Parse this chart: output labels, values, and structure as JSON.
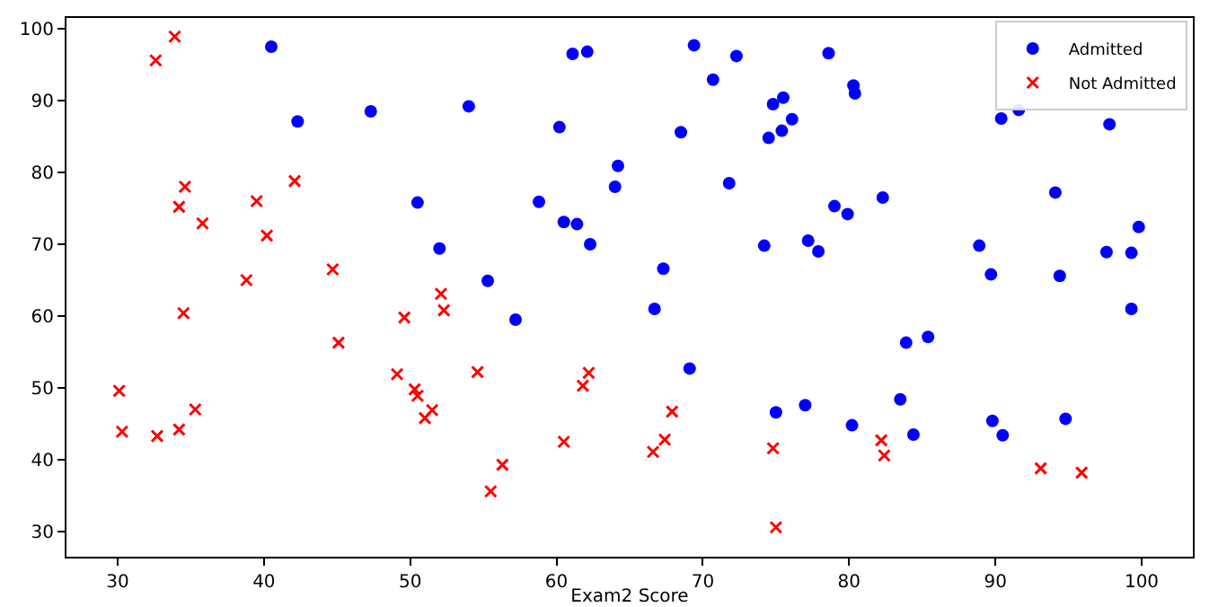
{
  "chart_data": {
    "type": "scatter",
    "xlabel": "Exam2 Score",
    "xlim": [
      26.5,
      103.5
    ],
    "xticks": [
      30,
      40,
      50,
      60,
      70,
      80,
      90,
      100
    ],
    "ylim": [
      26.5,
      101.5
    ],
    "yticks": [
      30,
      40,
      50,
      60,
      70,
      80,
      90,
      100
    ],
    "grid": false,
    "legend": "top right",
    "series": [
      {
        "name": "Admitted",
        "color": "#0000ff",
        "marker": "circle",
        "x": [
          60.2,
          79.0,
          61.1,
          75.0,
          76.1,
          84.4,
          82.3,
          69.4,
          54.0,
          69.1,
          70.7,
          77.0,
          89.7,
          77.9,
          62.3,
          80.2,
          61.4,
          85.4,
          52.0,
          64.2,
          83.9,
          94.4,
          77.2,
          97.8,
          62.1,
          91.6,
          79.9,
          99.3,
          90.5,
          97.6,
          74.2,
          71.8,
          75.4,
          40.5,
          80.3,
          66.7,
          64.0,
          72.3,
          60.5,
          58.8,
          99.8,
          47.3,
          50.5,
          88.9,
          94.8,
          67.3,
          57.2,
          80.4,
          68.5,
          75.5,
          78.6,
          94.1,
          90.4,
          74.5,
          89.8,
          83.5,
          42.3,
          99.3,
          55.3,
          74.8
        ],
        "values": [
          86.3,
          75.3,
          96.5,
          46.6,
          87.4,
          43.5,
          76.5,
          97.7,
          89.2,
          52.7,
          92.9,
          47.6,
          65.8,
          69.0,
          70.0,
          44.8,
          72.8,
          57.1,
          69.4,
          80.9,
          56.3,
          65.6,
          70.5,
          86.7,
          96.8,
          88.7,
          74.2,
          61.0,
          43.4,
          68.9,
          69.8,
          78.5,
          85.8,
          97.5,
          92.1,
          61.0,
          78.0,
          96.2,
          73.1,
          75.9,
          72.4,
          88.5,
          75.8,
          69.8,
          45.7,
          66.6,
          59.5,
          91.0,
          85.6,
          90.4,
          96.6,
          77.2,
          87.5,
          84.8,
          45.4,
          48.4,
          87.1,
          68.8,
          64.9,
          89.5
        ]
      },
      {
        "name": "Not Admitted",
        "color": "#ff0000",
        "marker": "cross",
        "x": [
          34.6,
          30.3,
          35.8,
          45.1,
          95.9,
          75.0,
          39.5,
          67.9,
          67.4,
          50.5,
          34.2,
          93.1,
          61.8,
          38.8,
          52.1,
          40.2,
          54.6,
          33.9,
          74.8,
          34.2,
          51.5,
          82.4,
          51.0,
          62.2,
          34.5,
          50.3,
          49.6,
          32.6,
          35.3,
          56.3,
          30.1,
          44.7,
          66.6,
          49.1,
          32.7,
          60.5,
          82.2,
          42.1,
          52.3,
          55.5
        ],
        "values": [
          78.0,
          43.9,
          72.9,
          56.3,
          38.2,
          30.6,
          76.0,
          46.7,
          42.8,
          48.9,
          44.2,
          38.8,
          50.3,
          65.0,
          63.1,
          71.2,
          52.2,
          98.9,
          41.6,
          75.2,
          46.9,
          40.6,
          45.8,
          52.1,
          60.4,
          49.8,
          59.8,
          95.6,
          47.0,
          39.3,
          49.6,
          66.5,
          41.1,
          51.9,
          43.3,
          42.5,
          42.7,
          78.8,
          60.8,
          35.6
        ]
      }
    ]
  }
}
